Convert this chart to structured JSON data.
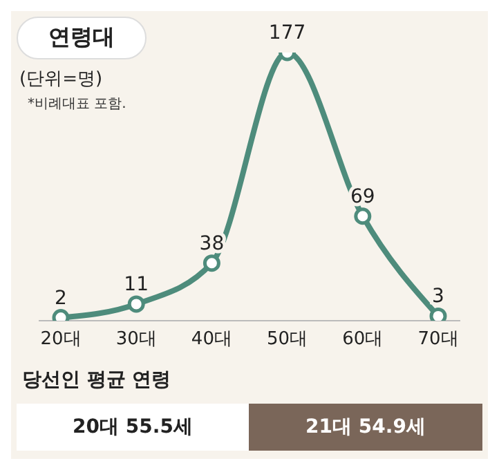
{
  "chart_data": {
    "type": "line",
    "title": "연령대",
    "subtitle": "(단위=명)",
    "annotations": [
      "*비례대표 포함.",
      "당선인 평균 연령",
      "20대 55.5세",
      "21대 54.9세"
    ],
    "categories": [
      "20대",
      "30대",
      "40대",
      "50대",
      "60대",
      "70대"
    ],
    "values": [
      2,
      11,
      38,
      177,
      69,
      3
    ],
    "color": "#4e8c7c",
    "marker": "circle",
    "data_labels": true,
    "grid": false,
    "legend": false,
    "tick_labels": "x"
  }
}
